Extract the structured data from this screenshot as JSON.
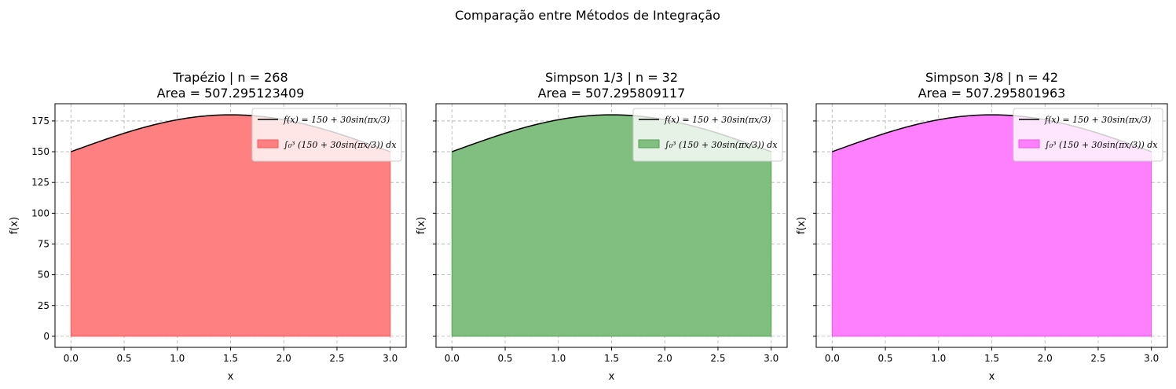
{
  "figure": {
    "suptitle": "Comparação entre Métodos de Integração"
  },
  "chart_data": [
    {
      "type": "area",
      "title": "Trapézio | n = 268",
      "subtitle": "Area = 507.295123409",
      "xlabel": "x",
      "ylabel": "f(x)",
      "xlim": [
        -0.15,
        3.15
      ],
      "ylim": [
        -9,
        189
      ],
      "xticks": [
        "0.0",
        "0.5",
        "1.0",
        "1.5",
        "2.0",
        "2.5",
        "3.0"
      ],
      "yticks": [
        "0",
        "25",
        "50",
        "75",
        "100",
        "125",
        "150",
        "175"
      ],
      "grid": true,
      "legend_position": "upper-right",
      "function": "f(x) = 150 + 30sin(πx/3)",
      "integral_label": "∫₀³ (150 + 30sin(πx/3)) dx",
      "fill_color": "#ff8080",
      "fill_edge": "#ff5555",
      "series": [
        {
          "name": "f(x) = 150 + 30sin(πx/3)",
          "x": [
            0,
            0.25,
            0.5,
            0.75,
            1.0,
            1.25,
            1.5,
            1.75,
            2.0,
            2.25,
            2.5,
            2.75,
            3.0
          ],
          "values": [
            150,
            157.76,
            165,
            171.21,
            175.98,
            178.98,
            180,
            178.98,
            175.98,
            171.21,
            165,
            157.76,
            150
          ]
        }
      ]
    },
    {
      "type": "area",
      "title": "Simpson 1/3 | n = 32",
      "subtitle": "Area = 507.295809117",
      "xlabel": "x",
      "ylabel": "f(x)",
      "xlim": [
        -0.15,
        3.15
      ],
      "ylim": [
        -9,
        189
      ],
      "xticks": [
        "0.0",
        "0.5",
        "1.0",
        "1.5",
        "2.0",
        "2.5",
        "3.0"
      ],
      "yticks": [
        "0",
        "25",
        "50",
        "75",
        "100",
        "125",
        "150",
        "175"
      ],
      "grid": true,
      "legend_position": "upper-right",
      "function": "f(x) = 150 + 30sin(πx/3)",
      "integral_label": "∫₀³ (150 + 30sin(πx/3)) dx",
      "fill_color": "#80bf80",
      "fill_edge": "#55a055",
      "series": [
        {
          "name": "f(x) = 150 + 30sin(πx/3)",
          "x": [
            0,
            0.25,
            0.5,
            0.75,
            1.0,
            1.25,
            1.5,
            1.75,
            2.0,
            2.25,
            2.5,
            2.75,
            3.0
          ],
          "values": [
            150,
            157.76,
            165,
            171.21,
            175.98,
            178.98,
            180,
            178.98,
            175.98,
            171.21,
            165,
            157.76,
            150
          ]
        }
      ]
    },
    {
      "type": "area",
      "title": "Simpson 3/8 | n = 42",
      "subtitle": "Area = 507.295801963",
      "xlabel": "x",
      "ylabel": "f(x)",
      "xlim": [
        -0.15,
        3.15
      ],
      "ylim": [
        -9,
        189
      ],
      "xticks": [
        "0.0",
        "0.5",
        "1.0",
        "1.5",
        "2.0",
        "2.5",
        "3.0"
      ],
      "yticks": [
        "0",
        "25",
        "50",
        "75",
        "100",
        "125",
        "150",
        "175"
      ],
      "grid": true,
      "legend_position": "upper-right",
      "function": "f(x) = 150 + 30sin(πx/3)",
      "integral_label": "∫₀³ (150 + 30sin(πx/3)) dx",
      "fill_color": "#ff80ff",
      "fill_edge": "#ee55ee",
      "series": [
        {
          "name": "f(x) = 150 + 30sin(πx/3)",
          "x": [
            0,
            0.25,
            0.5,
            0.75,
            1.0,
            1.25,
            1.5,
            1.75,
            2.0,
            2.25,
            2.5,
            2.75,
            3.0
          ],
          "values": [
            150,
            157.76,
            165,
            171.21,
            175.98,
            178.98,
            180,
            178.98,
            175.98,
            171.21,
            165,
            157.76,
            150
          ]
        }
      ]
    }
  ]
}
